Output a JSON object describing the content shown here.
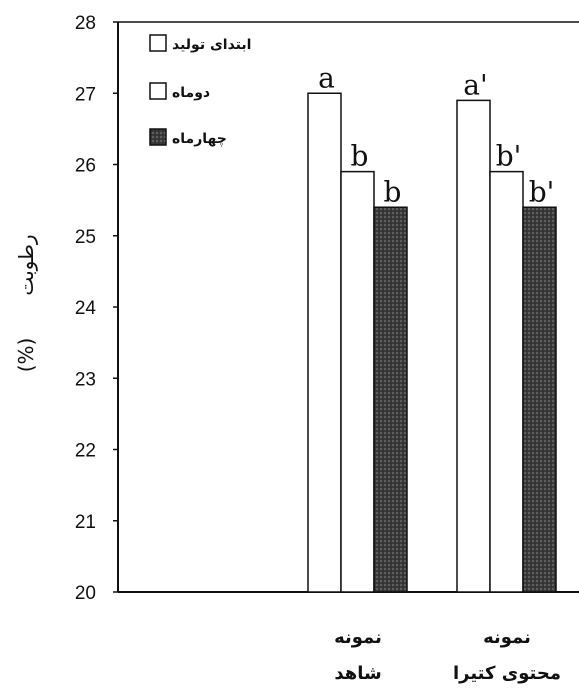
{
  "chart_data": {
    "type": "bar",
    "ylabel_unit": "(%)",
    "ylabel_word": "رطوبت",
    "ylim": [
      20,
      28
    ],
    "yticks": [
      20,
      21,
      22,
      23,
      24,
      25,
      26,
      27,
      28
    ],
    "categories": [
      {
        "lines": [
          "نمونه",
          "شاهد"
        ]
      },
      {
        "lines": [
          "نمونه",
          "محتوی کتیرا"
        ]
      }
    ],
    "series": [
      {
        "name": "ابتدای تولید",
        "values": [
          27.0,
          26.9
        ],
        "labels": [
          "a",
          "a'"
        ],
        "fill": "#ffffff"
      },
      {
        "name": "دوماه",
        "values": [
          25.9,
          25.9
        ],
        "labels": [
          "b",
          "b'"
        ],
        "fill": "#ffffff"
      },
      {
        "name": "چهارماه",
        "values": [
          25.4,
          25.4
        ],
        "labels": [
          "b",
          "b'"
        ],
        "fill": "#3a3a3a"
      }
    ],
    "legend_position": "top-left",
    "grid": false
  }
}
